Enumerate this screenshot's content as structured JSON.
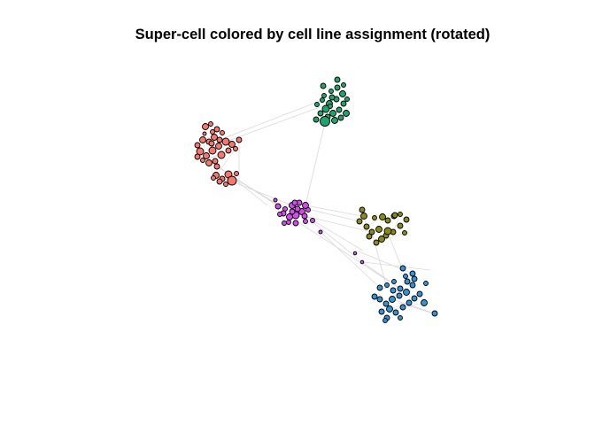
{
  "title": "Super-cell colored by cell line assignment (rotated)",
  "colors": {
    "edge": "#d9d9d9",
    "node_stroke": "#000000",
    "red": "#f8766d",
    "green": "#1fa46d",
    "magenta": "#d34ded",
    "olive": "#8a8a16",
    "blue": "#2e95d9"
  }
}
